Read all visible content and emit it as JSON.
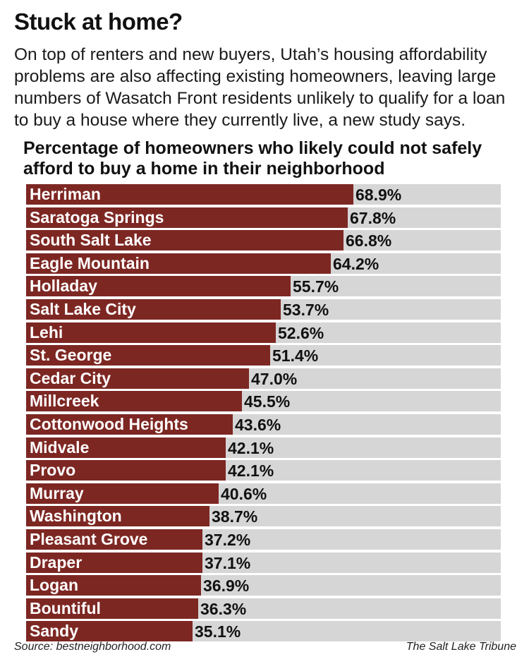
{
  "header": {
    "title": "Stuck at home?",
    "intro": "On top of renters and new buyers, Utah’s housing affordability problems are also affecting existing homeowners, leaving large numbers of Wasatch Front residents unlikely to qualify for a loan to buy a house where they currently live, a new study says."
  },
  "footer": {
    "source": "Source: bestneighborhood.com",
    "credit": "The Salt Lake Tribune"
  },
  "colors": {
    "bar": "#7d2723",
    "track": "#d6d6d6"
  },
  "chart_data": {
    "type": "bar",
    "orientation": "horizontal",
    "title": "Percentage of homeowners who likely could not safely afford to buy a home in their neighborhood",
    "xlabel": "",
    "ylabel": "",
    "xlim": [
      0,
      100
    ],
    "unit": "%",
    "categories": [
      "Herriman",
      "Saratoga Springs",
      "South Salt Lake",
      "Eagle Mountain",
      "Holladay",
      "Salt Lake City",
      "Lehi",
      "St. George",
      "Cedar City",
      "Millcreek",
      "Cottonwood Heights",
      "Midvale",
      "Provo",
      "Murray",
      "Washington",
      "Pleasant Grove",
      "Draper",
      "Logan",
      "Bountiful",
      "Sandy"
    ],
    "values": [
      68.9,
      67.8,
      66.8,
      64.2,
      55.7,
      53.7,
      52.6,
      51.4,
      47.0,
      45.5,
      43.6,
      42.1,
      42.1,
      40.6,
      38.7,
      37.2,
      37.1,
      36.9,
      36.3,
      35.1
    ],
    "labels": [
      "68.9%",
      "67.8%",
      "66.8%",
      "64.2%",
      "55.7%",
      "53.7%",
      "52.6%",
      "51.4%",
      "47.0%",
      "45.5%",
      "43.6%",
      "42.1%",
      "42.1%",
      "40.6%",
      "38.7%",
      "37.2%",
      "37.1%",
      "36.9%",
      "36.3%",
      "35.1%"
    ]
  }
}
